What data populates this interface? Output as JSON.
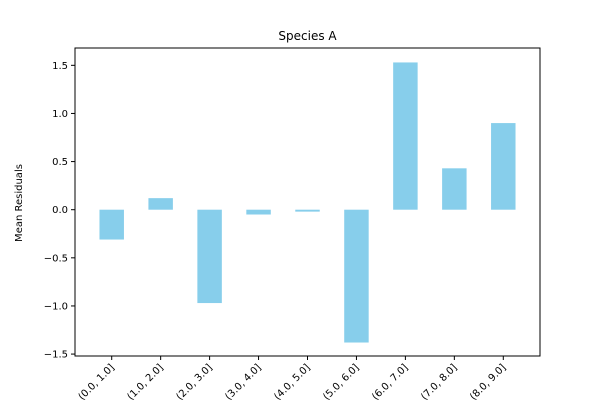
{
  "chart_data": {
    "type": "bar",
    "title": "Species A",
    "xlabel": "",
    "ylabel": "Mean Residuals",
    "categories": [
      "(0.0, 1.0]",
      "(1.0, 2.0]",
      "(2.0, 3.0]",
      "(3.0, 4.0]",
      "(4.0, 5.0]",
      "(5.0, 6.0]",
      "(6.0, 7.0]",
      "(7.0, 8.0]",
      "(8.0, 9.0]"
    ],
    "values": [
      -0.31,
      0.12,
      -0.97,
      -0.05,
      -0.02,
      -1.38,
      1.53,
      0.43,
      0.9
    ],
    "ylim": [
      -1.52,
      1.68
    ],
    "yticks": [
      -1.5,
      -1.0,
      -0.5,
      0.0,
      0.5,
      1.0,
      1.5
    ],
    "ytick_labels": [
      "−1.5",
      "−1.0",
      "−0.5",
      "0.0",
      "0.5",
      "1.0",
      "1.5"
    ],
    "bar_color": "#87ceeb",
    "grid": false,
    "legend": "none"
  }
}
